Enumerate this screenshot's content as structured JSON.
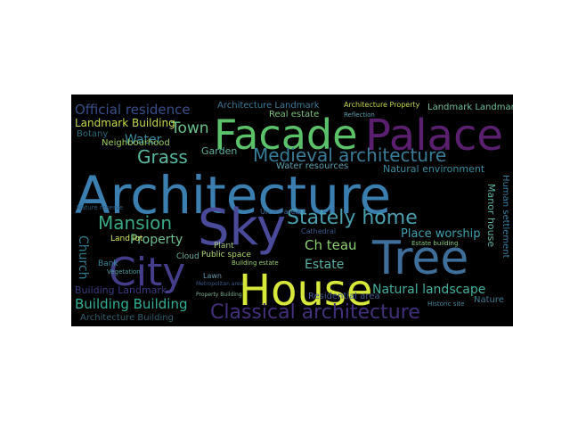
{
  "background_color": "#000000",
  "words": [
    {
      "text": "Architecture",
      "color": "#3b7fb0"
    },
    {
      "text": "Facade",
      "color": "#5cc26a"
    },
    {
      "text": "Palace",
      "color": "#5a1f6e"
    },
    {
      "text": "Sky",
      "color": "#4a4a9a"
    },
    {
      "text": "House",
      "color": "#d8e83a"
    },
    {
      "text": "City",
      "color": "#433d8a"
    },
    {
      "text": "Tree",
      "color": "#3e6e9a"
    },
    {
      "text": "Stately home",
      "color": "#4aa0b0"
    },
    {
      "text": "Classical architecture",
      "color": "#44307a"
    },
    {
      "text": "Medieval architecture",
      "color": "#3a7d98"
    },
    {
      "text": "Mansion",
      "color": "#3aaa88"
    },
    {
      "text": "Grass",
      "color": "#58b8a0"
    },
    {
      "text": "Town",
      "color": "#6ac28a"
    },
    {
      "text": "Water",
      "color": "#3a8a9a"
    },
    {
      "text": "Official residence",
      "color": "#3a4f8a"
    },
    {
      "text": "Landmark Building",
      "color": "#c9d84a"
    },
    {
      "text": "Building Building",
      "color": "#30b098"
    },
    {
      "text": "Building Landmark",
      "color": "#3a3a80"
    },
    {
      "text": "Architecture Building",
      "color": "#32606e"
    },
    {
      "text": "Natural landscape",
      "color": "#40b0a0"
    },
    {
      "text": "Place worship",
      "color": "#3fa0b0"
    },
    {
      "text": "Ch teau",
      "color": "#8ad070"
    },
    {
      "text": "Estate",
      "color": "#54b4a8"
    },
    {
      "text": "Property",
      "color": "#6cc090"
    },
    {
      "text": "Church",
      "color": "#2e7a8a"
    },
    {
      "text": "Garden",
      "color": "#5fb0a0"
    },
    {
      "text": "Neighbourhood",
      "color": "#9acc5a"
    },
    {
      "text": "Natural environment",
      "color": "#3c8aa0"
    },
    {
      "text": "Water resources",
      "color": "#5aa0b0"
    },
    {
      "text": "Real estate",
      "color": "#7ac07a"
    },
    {
      "text": "Architecture Landmark",
      "color": "#3f7a9a"
    },
    {
      "text": "Architecture Property",
      "color": "#c8d850"
    },
    {
      "text": "Landmark Landmark",
      "color": "#6fc09a"
    },
    {
      "text": "Manor house",
      "color": "#5ab0a0"
    },
    {
      "text": "Human settlement",
      "color": "#3a7fa0"
    },
    {
      "text": "Residential area",
      "color": "#3e5a8f"
    },
    {
      "text": "Public space",
      "color": "#b0d870"
    },
    {
      "text": "Land lot",
      "color": "#d8e85a"
    },
    {
      "text": "Botany",
      "color": "#2a6a7a"
    },
    {
      "text": "Bank",
      "color": "#3a8a9a"
    },
    {
      "text": "Cloud",
      "color": "#6ab0a0"
    },
    {
      "text": "Plant",
      "color": "#a8d080"
    },
    {
      "text": "Lawn",
      "color": "#6a9ab0"
    },
    {
      "text": "Nature",
      "color": "#3a7a90"
    },
    {
      "text": "Nature reserve",
      "color": "#2e5a7a"
    },
    {
      "text": "Historic site",
      "color": "#4a8aa0"
    },
    {
      "text": "Building estate",
      "color": "#9ad070"
    },
    {
      "text": "Estate building",
      "color": "#8acc80"
    },
    {
      "text": "Urban area",
      "color": "#3a6a9a"
    },
    {
      "text": "Cathedral",
      "color": "#3c5a8a"
    },
    {
      "text": "Vegetation",
      "color": "#4aa0a0"
    },
    {
      "text": "Reflection",
      "color": "#5aa0b0"
    },
    {
      "text": "Metropolitan area",
      "color": "#3a5a8a"
    },
    {
      "text": "Property Building",
      "color": "#7ab090"
    }
  ]
}
